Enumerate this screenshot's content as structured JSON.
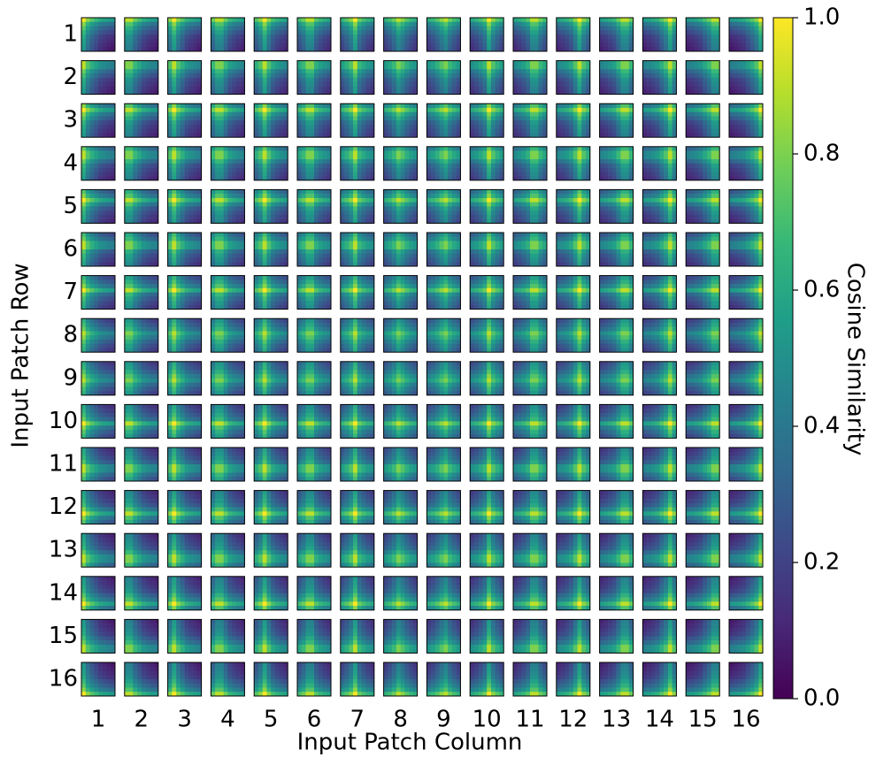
{
  "chart_data": {
    "type": "similarity-grid",
    "row_labels": [
      "1",
      "2",
      "3",
      "4",
      "5",
      "6",
      "7",
      "8",
      "9",
      "10",
      "11",
      "12",
      "13",
      "14",
      "15",
      "16"
    ],
    "column_labels": [
      "1",
      "2",
      "3",
      "4",
      "5",
      "6",
      "7",
      "8",
      "9",
      "10",
      "11",
      "12",
      "13",
      "14",
      "15",
      "16"
    ],
    "xlabel": "Input Patch Column",
    "ylabel": "Input Patch Row",
    "colorbar_label": "Cosine Similarity",
    "clim": [
      0,
      1
    ],
    "colorbar_ticks": [
      {
        "value": 0,
        "label": "0.0"
      },
      0.2,
      0.4,
      0.6,
      0.8,
      {
        "value": 1,
        "label": "1.0"
      }
    ],
    "colormap": [
      "#440154",
      "#482878",
      "#3e4989",
      "#31688e",
      "#26828e",
      "#1f9e89",
      "#35b779",
      "#6ece58",
      "#b5de2b",
      "#fde725"
    ],
    "distance_profile": [
      1.0,
      0.8,
      0.65,
      0.55,
      0.47,
      0.4,
      0.34,
      0.29,
      0.25,
      0.21,
      0.18,
      0.15,
      0.12,
      0.1,
      0.08,
      0.06
    ]
  }
}
